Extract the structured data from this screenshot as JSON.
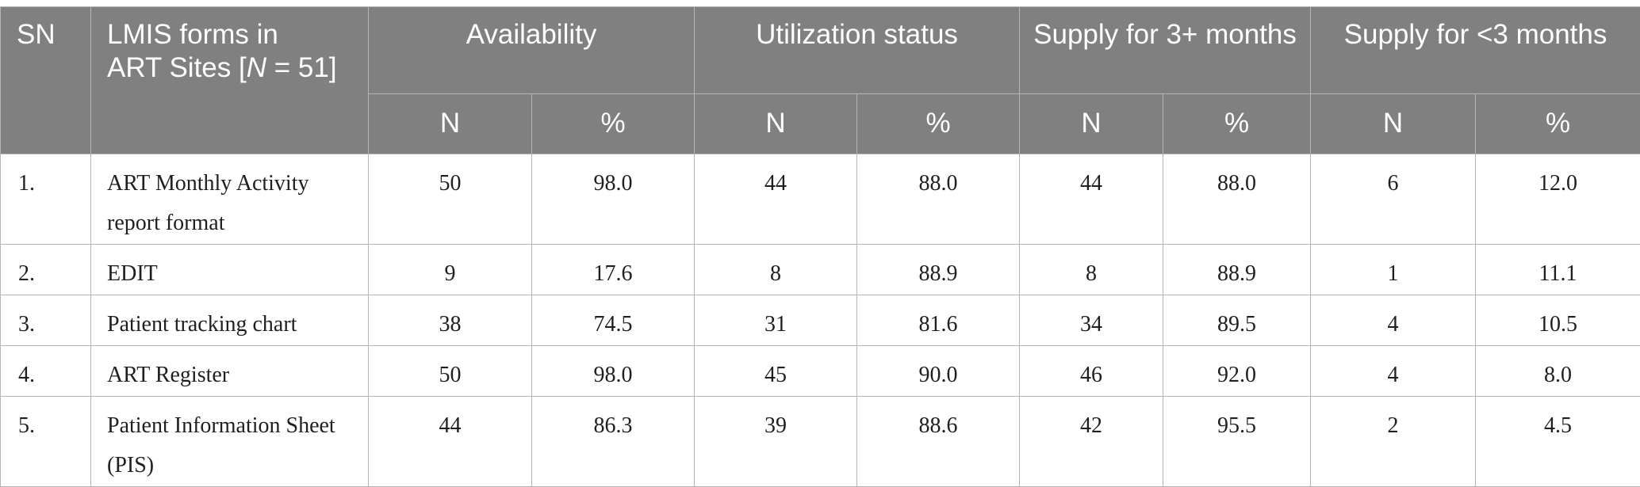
{
  "table": {
    "headers": {
      "sn": "SN",
      "forms_line1": "LMIS forms in",
      "forms_line2_prefix": "ART Sites [",
      "forms_line2_italic": "N",
      "forms_line2_suffix": " = 51]",
      "availability": "Availability",
      "utilization": "Utilization status",
      "supply3plus": "Supply for 3+ months",
      "supply_lt3": "Supply for <3 months",
      "sub": [
        "N",
        "%",
        "N",
        "%",
        "N",
        "%",
        "N",
        "%"
      ]
    },
    "rows": [
      {
        "sn": "1.",
        "form": "ART Monthly Activity report format",
        "avail_n": "50",
        "avail_pct": "98.0",
        "util_n": "44",
        "util_pct": "88.0",
        "s3_n": "44",
        "s3_pct": "88.0",
        "slt3_n": "6",
        "slt3_pct": "12.0"
      },
      {
        "sn": "2.",
        "form": "EDIT",
        "avail_n": "9",
        "avail_pct": "17.6",
        "util_n": "8",
        "util_pct": "88.9",
        "s3_n": "8",
        "s3_pct": "88.9",
        "slt3_n": "1",
        "slt3_pct": "11.1"
      },
      {
        "sn": "3.",
        "form": "Patient tracking chart",
        "avail_n": "38",
        "avail_pct": "74.5",
        "util_n": "31",
        "util_pct": "81.6",
        "s3_n": "34",
        "s3_pct": "89.5",
        "slt3_n": "4",
        "slt3_pct": "10.5"
      },
      {
        "sn": "4.",
        "form": "ART Register",
        "avail_n": "50",
        "avail_pct": "98.0",
        "util_n": "45",
        "util_pct": "90.0",
        "s3_n": "46",
        "s3_pct": "92.0",
        "slt3_n": "4",
        "slt3_pct": "8.0"
      },
      {
        "sn": "5.",
        "form": "Patient Information Sheet (PIS)",
        "avail_n": "44",
        "avail_pct": "86.3",
        "util_n": "39",
        "util_pct": "88.6",
        "s3_n": "42",
        "s3_pct": "95.5",
        "slt3_n": "2",
        "slt3_pct": "4.5"
      }
    ]
  }
}
